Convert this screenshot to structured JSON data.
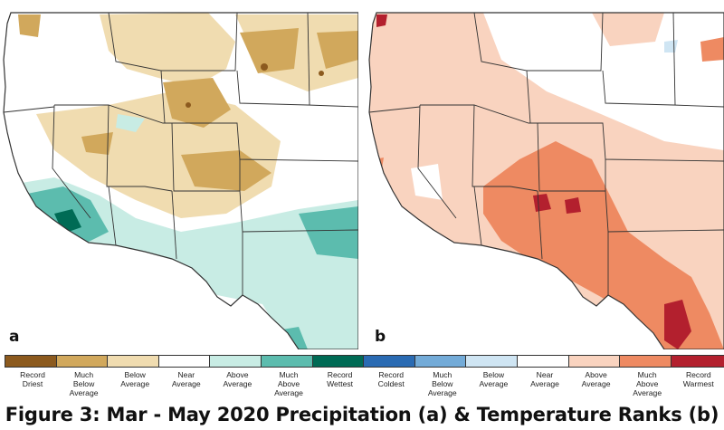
{
  "panels": [
    {
      "letter": "a",
      "variable": "precipitation"
    },
    {
      "letter": "b",
      "variable": "temperature"
    }
  ],
  "legend": [
    {
      "label": "Record\nDriest",
      "color": "#8c5a1e"
    },
    {
      "label": "Much\nBelow\nAverage",
      "color": "#d1a85c"
    },
    {
      "label": "Below\nAverage",
      "color": "#f0dcb0"
    },
    {
      "label": "Near\nAverage",
      "color": "#ffffff"
    },
    {
      "label": "Above\nAverage",
      "color": "#c8ece4"
    },
    {
      "label": "Much\nAbove\nAverage",
      "color": "#5cbcae"
    },
    {
      "label": "Record\nWettest",
      "color": "#006b55"
    },
    {
      "label": "Record\nColdest",
      "color": "#2a6bb3"
    },
    {
      "label": "Much\nBelow\nAverage",
      "color": "#73abd8"
    },
    {
      "label": "Below\nAverage",
      "color": "#cfe5f3"
    },
    {
      "label": "Near\nAverage",
      "color": "#ffffff"
    },
    {
      "label": "Above\nAverage",
      "color": "#f9d3bf"
    },
    {
      "label": "Much\nAbove\nAverage",
      "color": "#ee8a62"
    },
    {
      "label": "Record\nWarmest",
      "color": "#b3202e"
    }
  ],
  "caption": "Figure 3: Mar - May 2020 Precipitation (a) & Temperature Ranks (b)",
  "map_colors": {
    "border": "#333333",
    "land_base": "#ffffff"
  }
}
